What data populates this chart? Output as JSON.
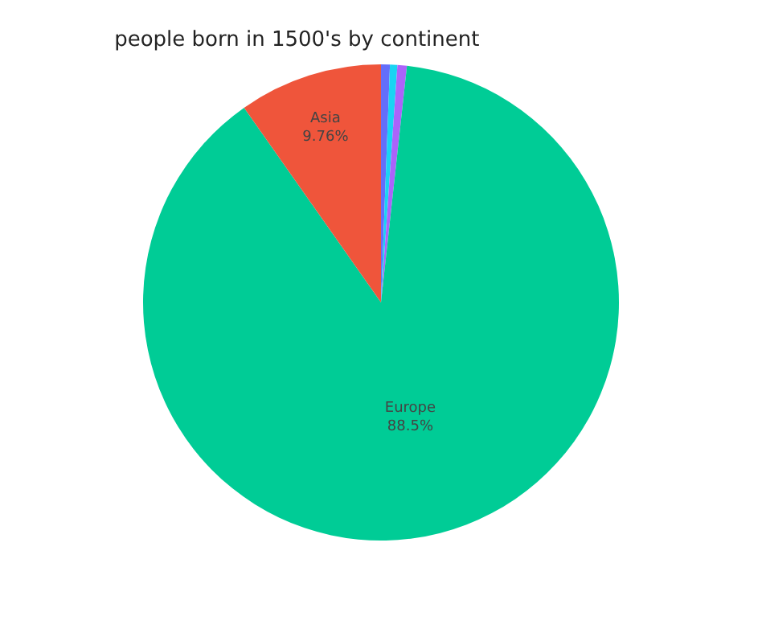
{
  "chart_data": {
    "type": "pie",
    "title": "people born in 1500's by continent",
    "categories": [
      null,
      null,
      null,
      "Europe",
      "Asia"
    ],
    "values": [
      0.6,
      0.5,
      0.64,
      88.5,
      9.76
    ],
    "value_labels": [
      null,
      null,
      null,
      "88.5%",
      "9.76%"
    ],
    "colors": [
      "#636efa",
      "#19d3f3",
      "#ab63fa",
      "#00cc96",
      "#ef553b"
    ],
    "legend": false
  }
}
